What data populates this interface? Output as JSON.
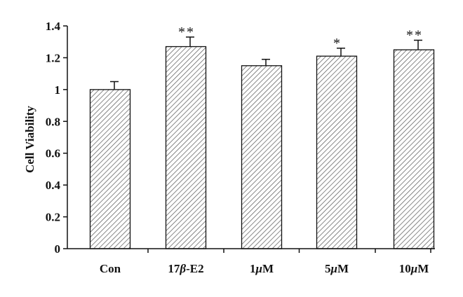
{
  "chart_data": {
    "type": "bar",
    "title": "",
    "xlabel": "",
    "ylabel": "Cell Viability",
    "ylim": [
      0,
      1.4
    ],
    "yticks": [
      "0",
      "0.2",
      "0.4",
      "0.6",
      "0.8",
      "1",
      "1.2",
      "1.4"
    ],
    "categories": [
      {
        "parts": [
          {
            "t": "Con"
          }
        ]
      },
      {
        "parts": [
          {
            "t": "17"
          },
          {
            "t": "β",
            "i": true
          },
          {
            "t": "-E2"
          }
        ]
      },
      {
        "parts": [
          {
            "t": "1"
          },
          {
            "t": "μ",
            "i": true
          },
          {
            "t": "M"
          }
        ]
      },
      {
        "parts": [
          {
            "t": "5"
          },
          {
            "t": "μ",
            "i": true
          },
          {
            "t": "M"
          }
        ]
      },
      {
        "parts": [
          {
            "t": "10"
          },
          {
            "t": "μ",
            "i": true
          },
          {
            "t": "M"
          }
        ]
      }
    ],
    "values": [
      1.0,
      1.27,
      1.15,
      1.21,
      1.25
    ],
    "errors": [
      0.05,
      0.06,
      0.04,
      0.05,
      0.06
    ],
    "significance": [
      "",
      "**",
      "",
      "*",
      "**"
    ],
    "bar_fill": "hatched",
    "grid": false,
    "colors": {
      "axis": "#111111",
      "bar_edge": "#111111",
      "hatch": "#555555"
    }
  }
}
